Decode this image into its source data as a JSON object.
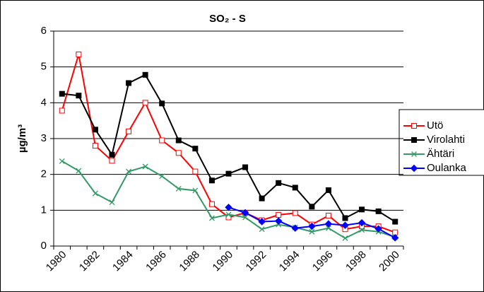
{
  "chart_data": {
    "type": "line",
    "title": "SO₂ - S",
    "y_label": "µg/m³",
    "categories": [
      "1980",
      null,
      "1982",
      null,
      "1984",
      null,
      "1986",
      null,
      "1988",
      null,
      "1990",
      null,
      "1992",
      null,
      "1994",
      null,
      "1996",
      null,
      "1998",
      null,
      "2000"
    ],
    "series": [
      {
        "name": "Utö",
        "color": "#ff0000",
        "marker": "open-square",
        "values": [
          3.78,
          5.35,
          2.8,
          2.38,
          3.2,
          4.0,
          2.95,
          2.6,
          2.08,
          1.17,
          0.8,
          0.93,
          0.72,
          0.87,
          0.92,
          0.6,
          0.85,
          0.47,
          0.55,
          0.55,
          0.38
        ]
      },
      {
        "name": "Virolahti",
        "color": "#000000",
        "marker": "square",
        "values": [
          4.25,
          4.2,
          3.25,
          2.55,
          4.55,
          4.78,
          3.98,
          2.95,
          2.72,
          1.83,
          2.02,
          2.2,
          1.33,
          1.76,
          1.63,
          1.1,
          1.56,
          0.78,
          1.02,
          0.97,
          0.68
        ]
      },
      {
        "name": "Ähtäri",
        "color": "#339966",
        "marker": "x",
        "values": [
          2.37,
          2.1,
          1.47,
          1.22,
          2.08,
          2.22,
          1.95,
          1.6,
          1.55,
          0.78,
          0.88,
          0.8,
          0.47,
          0.6,
          0.52,
          0.4,
          0.5,
          0.22,
          0.45,
          0.4,
          0.25
        ]
      },
      {
        "name": "Oulanka",
        "color": "#0000ff",
        "marker": "diamond",
        "values": [
          null,
          null,
          null,
          null,
          null,
          null,
          null,
          null,
          null,
          null,
          1.08,
          0.93,
          0.68,
          0.7,
          0.5,
          0.55,
          0.62,
          0.58,
          0.65,
          0.48,
          0.23
        ]
      }
    ],
    "ylim": [
      0,
      6
    ],
    "yticks": [
      0,
      1,
      2,
      3,
      4,
      5,
      6
    ],
    "grid": true
  }
}
